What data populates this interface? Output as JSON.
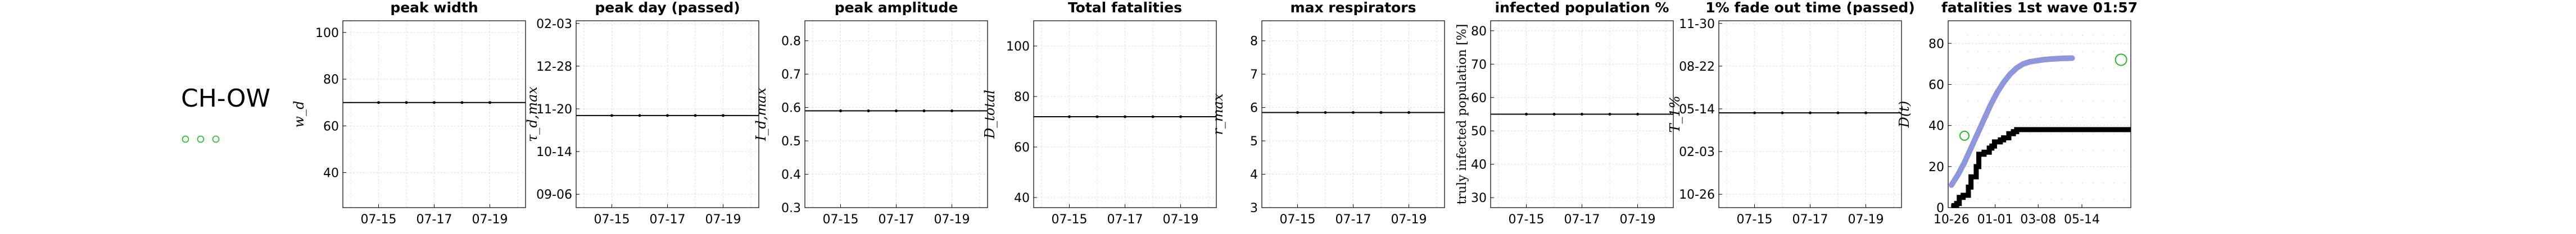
{
  "region": {
    "label": "CH-OW",
    "marker_color": "#22bb22",
    "marker_count": 3
  },
  "x_ticks_dates": [
    "07-15",
    "07-17",
    "07-19"
  ],
  "colors": {
    "line": "#000000",
    "fit": "#8f96dc",
    "marker": "#22bb22",
    "grid": "#dddddd"
  },
  "chart_data": [
    {
      "type": "line",
      "title": "peak width",
      "ylabel": "w_d",
      "x": [
        "07-14",
        "07-15",
        "07-16",
        "07-17",
        "07-18",
        "07-19",
        "07-20"
      ],
      "y_ticks": [
        "40",
        "60",
        "80",
        "100"
      ],
      "ylim": [
        25,
        105
      ],
      "series": [
        {
          "values": [
            70,
            70,
            70,
            70,
            70,
            70,
            70
          ]
        }
      ]
    },
    {
      "type": "line",
      "title": "peak day (passed)",
      "ylabel": "τ_d,max",
      "x": [
        "07-14",
        "07-15",
        "07-16",
        "07-17",
        "07-18",
        "07-19",
        "07-20"
      ],
      "y_ticks": [
        "09-06",
        "10-14",
        "11-20",
        "12-28",
        "02-03"
      ],
      "ylim": [
        0,
        7
      ],
      "series": [
        {
          "values": [
            3.45,
            3.45,
            3.45,
            3.45,
            3.45,
            3.45,
            3.45
          ]
        }
      ]
    },
    {
      "type": "line",
      "title": "peak amplitude",
      "ylabel": "I_d,max",
      "x": [
        "07-14",
        "07-15",
        "07-16",
        "07-17",
        "07-18",
        "07-19",
        "07-20"
      ],
      "y_ticks": [
        "0.3",
        "0.4",
        "0.5",
        "0.6",
        "0.7",
        "0.8"
      ],
      "ylim": [
        0.3,
        0.86
      ],
      "series": [
        {
          "values": [
            0.59,
            0.59,
            0.59,
            0.59,
            0.59,
            0.59,
            0.59
          ]
        }
      ]
    },
    {
      "type": "line",
      "title": "Total fatalities",
      "ylabel": "D_total",
      "x": [
        "07-14",
        "07-15",
        "07-16",
        "07-17",
        "07-18",
        "07-19",
        "07-20"
      ],
      "y_ticks": [
        "40",
        "60",
        "80",
        "100"
      ],
      "ylim": [
        36,
        110
      ],
      "series": [
        {
          "values": [
            72,
            72,
            72,
            72,
            72,
            72,
            72
          ]
        }
      ]
    },
    {
      "type": "line",
      "title": "max respirators",
      "ylabel": "r_max",
      "x": [
        "07-14",
        "07-15",
        "07-16",
        "07-17",
        "07-18",
        "07-19",
        "07-20"
      ],
      "y_ticks": [
        "3",
        "4",
        "5",
        "6",
        "7",
        "8"
      ],
      "ylim": [
        3,
        8.6
      ],
      "series": [
        {
          "values": [
            5.85,
            5.85,
            5.85,
            5.85,
            5.85,
            5.85,
            5.85
          ]
        }
      ]
    },
    {
      "type": "line",
      "title": "infected population %",
      "ylabel": "truly infected population [%]",
      "x": [
        "07-14",
        "07-15",
        "07-16",
        "07-17",
        "07-18",
        "07-19",
        "07-20"
      ],
      "y_ticks": [
        "30",
        "40",
        "50",
        "60",
        "70",
        "80"
      ],
      "ylim": [
        27,
        83
      ],
      "series": [
        {
          "values": [
            55,
            55,
            55,
            55,
            55,
            55,
            55
          ]
        }
      ]
    },
    {
      "type": "line",
      "title": "1% fade out time (passed)",
      "ylabel": "T_1%",
      "x": [
        "07-14",
        "07-15",
        "07-16",
        "07-17",
        "07-18",
        "07-19",
        "07-20"
      ],
      "y_ticks": [
        "10-26",
        "02-03",
        "05-14",
        "08-22",
        "11-30"
      ],
      "ylim": [
        0,
        7
      ],
      "series": [
        {
          "values": [
            3.55,
            3.55,
            3.55,
            3.55,
            3.55,
            3.55,
            3.55
          ]
        }
      ]
    },
    {
      "type": "line",
      "title": "fatalities 1st wave 01:57",
      "ylabel": "D(t)",
      "x_ticks": [
        "10-26",
        "01-01",
        "03-08",
        "05-14"
      ],
      "y_ticks": [
        "0",
        "20",
        "40",
        "60",
        "80"
      ],
      "xlim": [
        -5,
        275
      ],
      "ylim": [
        0,
        91
      ],
      "series": [
        {
          "kind": "fit",
          "x": [
            0,
            10,
            20,
            30,
            40,
            50,
            60,
            70,
            80,
            90,
            100,
            110,
            120,
            130,
            140,
            150,
            160,
            170,
            185
          ],
          "values": [
            11,
            16,
            22,
            29,
            36,
            43,
            50,
            56,
            61,
            65,
            68,
            70,
            71,
            71.5,
            72,
            72.3,
            72.5,
            72.7,
            72.8
          ]
        },
        {
          "kind": "observed",
          "x": [
            0,
            8,
            12,
            18,
            26,
            30,
            38,
            42,
            50,
            58,
            62,
            66,
            75,
            80,
            88,
            95,
            100,
            110,
            120,
            140,
            170,
            200,
            230,
            260,
            275
          ],
          "values": [
            1,
            2,
            5,
            6,
            10,
            15,
            20,
            26,
            27,
            29,
            30,
            32,
            33,
            34,
            36,
            37,
            38,
            38,
            38,
            38,
            38,
            38,
            38,
            38,
            38
          ]
        },
        {
          "kind": "prediction",
          "x": [
            260
          ],
          "values": [
            72
          ]
        },
        {
          "kind": "marker",
          "x": [
            20
          ],
          "values": [
            35
          ]
        }
      ]
    }
  ]
}
